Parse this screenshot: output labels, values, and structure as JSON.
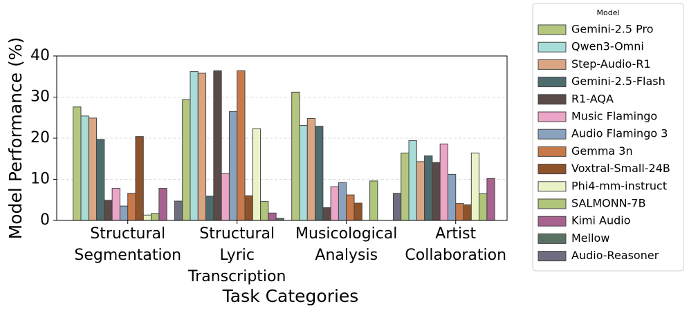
{
  "chart_data": {
    "type": "bar",
    "x_label": "Task Categories",
    "y_label": "Model Performance (%)",
    "legend_title": "Model",
    "legend_position": "outside right",
    "grid": true,
    "ylim": [
      0,
      40
    ],
    "yticks": [
      0,
      10,
      20,
      30,
      40
    ],
    "categories": [
      "Structural\nSegmentation",
      "Structural\nLyric\nTranscription",
      "Musicological\nAnalysis",
      "Artist\nCollaboration"
    ],
    "series": [
      {
        "name": "Gemini-2.5 Pro",
        "color": "#b5c77f",
        "values": [
          27.6,
          29.4,
          31.2,
          16.4
        ]
      },
      {
        "name": "Qwen3-Omni",
        "color": "#a8dcd9",
        "values": [
          25.4,
          36.2,
          23.1,
          19.4
        ]
      },
      {
        "name": "Step-Audio-R1",
        "color": "#d9a582",
        "values": [
          24.9,
          35.8,
          24.8,
          14.3
        ]
      },
      {
        "name": "Gemini-2.5-Flash",
        "color": "#4e6b6e",
        "values": [
          19.7,
          5.9,
          22.9,
          15.7
        ]
      },
      {
        "name": "R1-AQA",
        "color": "#5a4a48",
        "values": [
          4.9,
          36.4,
          3.1,
          14.1
        ]
      },
      {
        "name": "Music Flamingo",
        "color": "#eba5c7",
        "values": [
          7.8,
          11.4,
          8.2,
          18.6
        ]
      },
      {
        "name": "Audio Flamingo 3",
        "color": "#8aa2bd",
        "values": [
          3.5,
          26.5,
          9.2,
          11.2
        ]
      },
      {
        "name": "Gemma 3n",
        "color": "#c8794a",
        "values": [
          6.6,
          36.4,
          6.2,
          4.1
        ]
      },
      {
        "name": "Voxtral-Small-24B",
        "color": "#8e532b",
        "values": [
          20.4,
          6.0,
          4.2,
          3.8
        ]
      },
      {
        "name": "Phi4-mm-instruct",
        "color": "#eaf2c8",
        "values": [
          1.3,
          22.3,
          0,
          16.4
        ]
      },
      {
        "name": "SALMONN-7B",
        "color": "#aec57a",
        "values": [
          1.7,
          4.6,
          9.6,
          6.5
        ]
      },
      {
        "name": "Kimi Audio",
        "color": "#a8628f",
        "values": [
          7.8,
          1.8,
          0,
          10.2
        ]
      },
      {
        "name": "Mellow",
        "color": "#5a7262",
        "values": [
          0,
          0.5,
          0,
          0
        ]
      },
      {
        "name": "Audio-Reasoner",
        "color": "#6e6e80",
        "values": [
          4.7,
          0,
          6.6,
          0
        ]
      }
    ]
  }
}
